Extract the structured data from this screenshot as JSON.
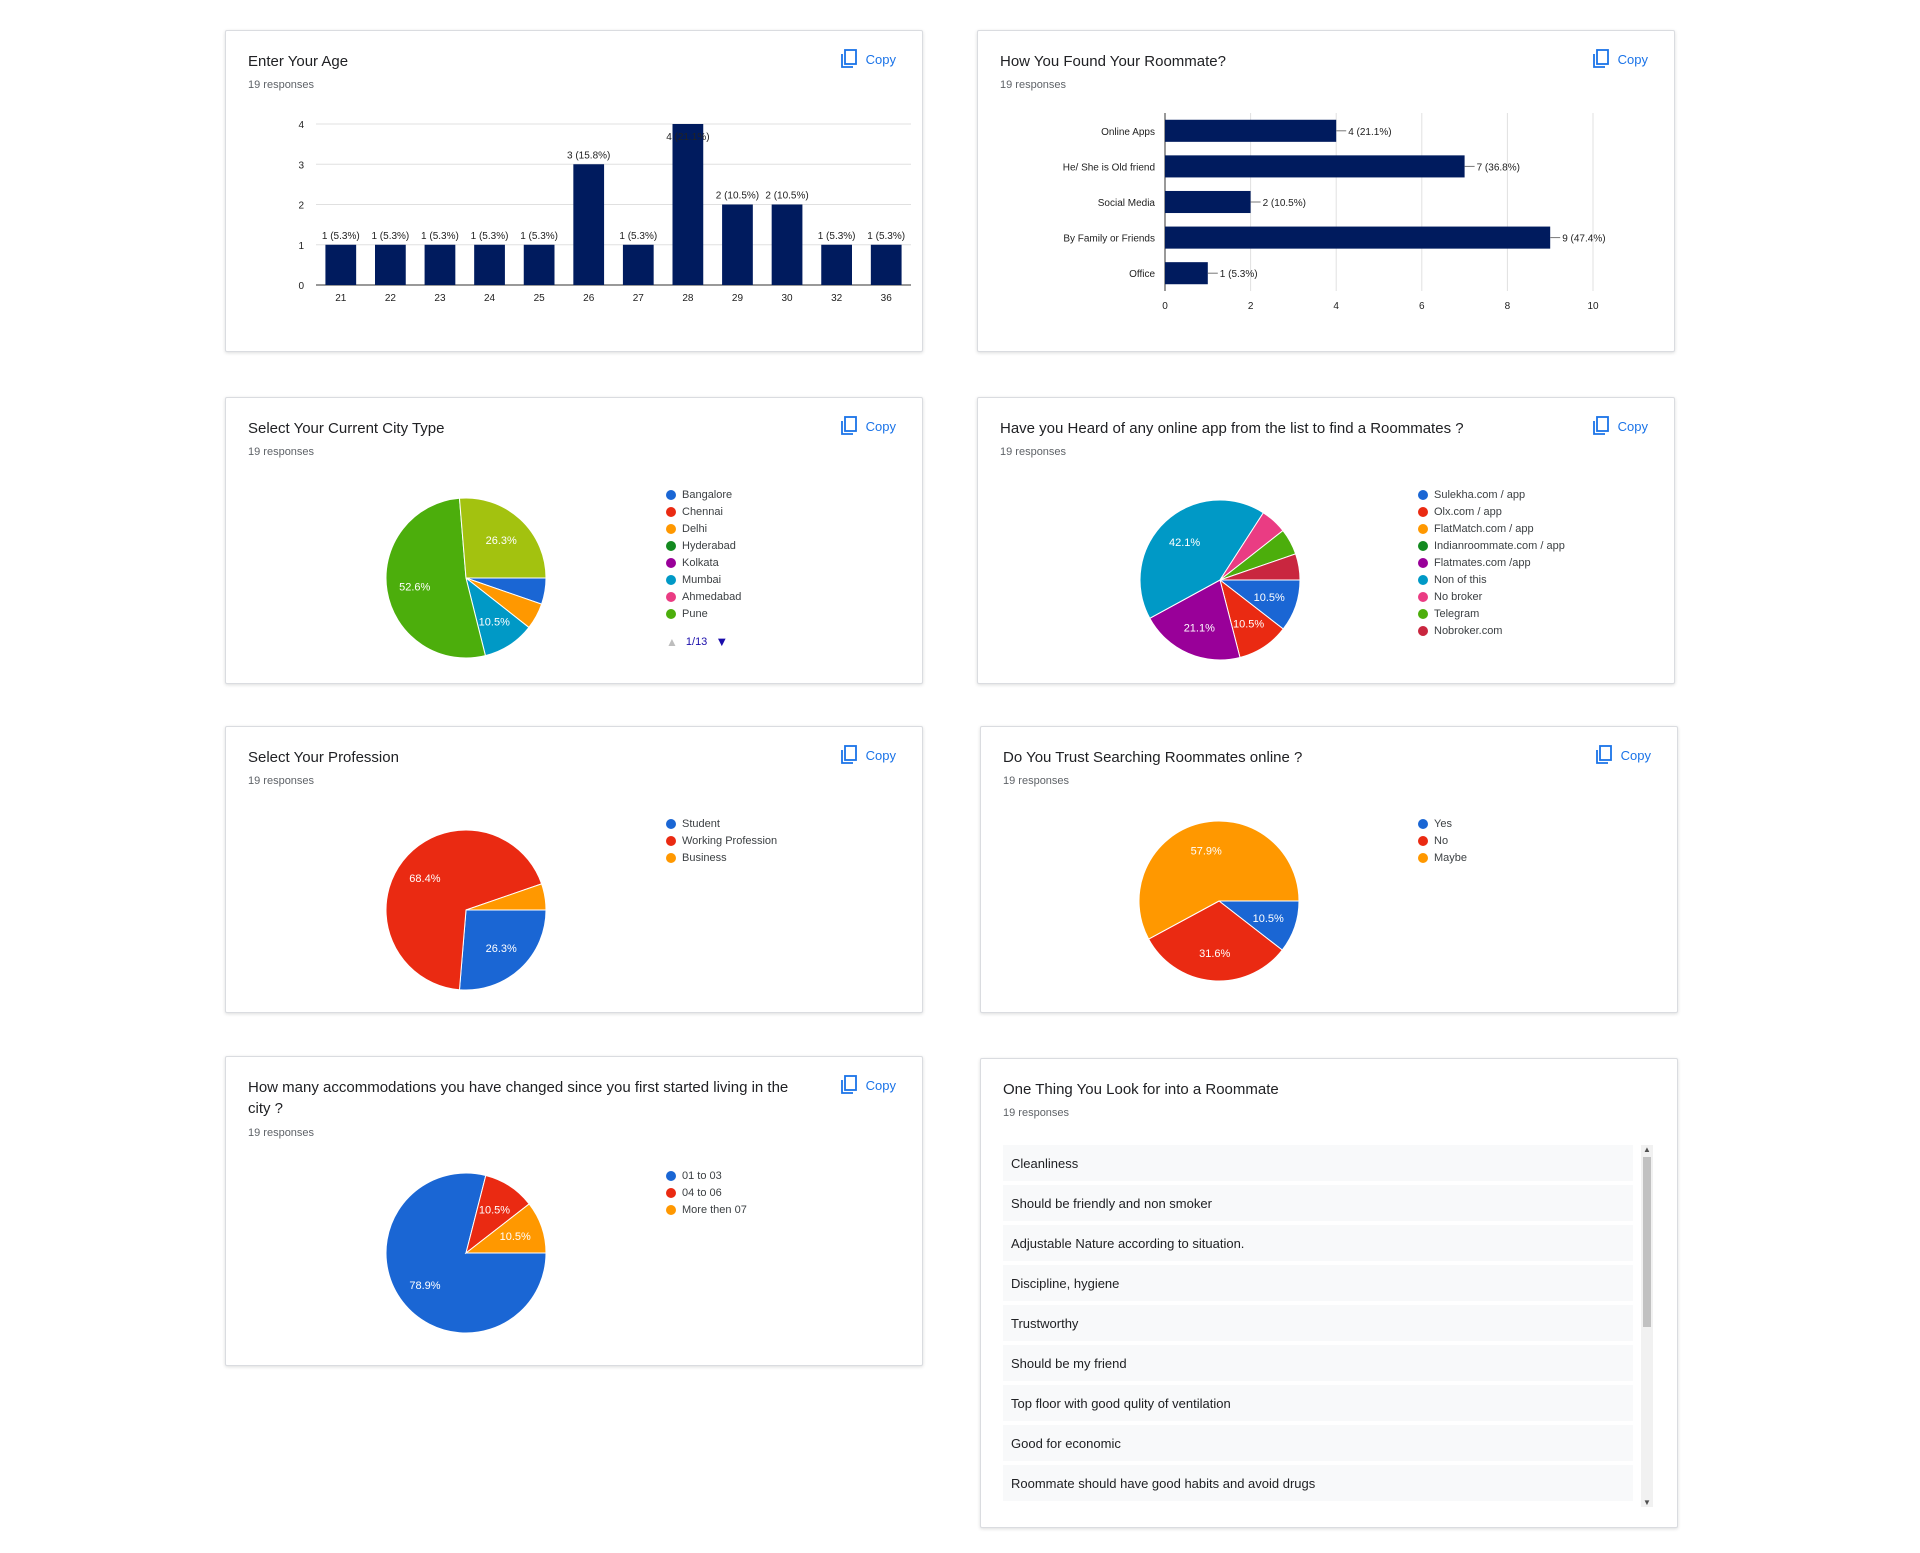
{
  "copy_label": "Copy",
  "cards": {
    "age": {
      "title": "Enter Your Age",
      "responses": "19 responses",
      "chart_data": {
        "type": "bar",
        "categories": [
          "21",
          "22",
          "23",
          "24",
          "25",
          "26",
          "27",
          "28",
          "29",
          "30",
          "32",
          "36"
        ],
        "values": [
          1,
          1,
          1,
          1,
          1,
          3,
          1,
          4,
          2,
          2,
          1,
          1
        ],
        "data_labels": [
          "1 (5.3%)",
          "1 (5.3%)",
          "1 (5.3%)",
          "1 (5.3%)",
          "1 (5.3%)",
          "3 (15.8%)",
          "1 (5.3%)",
          "4 (21.1%)",
          "2 (10.5%)",
          "2 (10.5%)",
          "1 (5.3%)",
          "1 (5.3%)"
        ],
        "ylim": [
          0,
          4
        ],
        "yticks": [
          "0",
          "1",
          "2",
          "3",
          "4"
        ],
        "color": "#001b5e",
        "grid": true
      }
    },
    "found": {
      "title": "How You Found Your Roommate?",
      "responses": "19 responses",
      "chart_data": {
        "type": "bar",
        "orientation": "horizontal",
        "categories": [
          "Online Apps",
          "He/ She is Old friend",
          "Social Media",
          "By Family or Friends",
          "Office"
        ],
        "values": [
          4,
          7,
          2,
          9,
          1
        ],
        "data_labels": [
          "4 (21.1%)",
          "7 (36.8%)",
          "2 (10.5%)",
          "9 (47.4%)",
          "1 (5.3%)"
        ],
        "xlim": [
          0,
          10
        ],
        "xticks": [
          "0",
          "2",
          "4",
          "6",
          "8",
          "10"
        ],
        "color": "#001b5e",
        "grid": true
      }
    },
    "city": {
      "title": "Select Your Current City Type",
      "responses": "19 responses",
      "pager": "1/13",
      "chart_data": {
        "type": "pie",
        "slices": [
          {
            "label": "Bangalore",
            "value": 5.3,
            "color": "#1a66d4",
            "text": ""
          },
          {
            "label": "Chennai",
            "value": 0,
            "color": "#ea2a12",
            "text": ""
          },
          {
            "label": "Delhi",
            "value": 5.3,
            "color": "#ff9800",
            "text": ""
          },
          {
            "label": "Hyderabad",
            "value": 0,
            "color": "#138a20",
            "text": ""
          },
          {
            "label": "Kolkata",
            "value": 0,
            "color": "#990099",
            "text": ""
          },
          {
            "label": "Mumbai",
            "value": 10.5,
            "color": "#0099c6",
            "text": "10.5%"
          },
          {
            "label": "Ahmedabad",
            "value": 0,
            "color": "#ea3c83",
            "text": ""
          },
          {
            "label": "Pune",
            "value": 52.6,
            "color": "#4cae0c",
            "text": "52.6%"
          },
          {
            "label": "",
            "value": 26.3,
            "color": "#a3c20f",
            "text": "26.3%"
          }
        ]
      }
    },
    "heard": {
      "title": "Have you Heard of any online app from the list to find a Roommates ?",
      "responses": "19 responses",
      "chart_data": {
        "type": "pie",
        "slices": [
          {
            "label": "Sulekha.com / app",
            "value": 10.5,
            "color": "#1a66d4",
            "text": "10.5%"
          },
          {
            "label": "Olx.com / app",
            "value": 10.5,
            "color": "#ea2a12",
            "text": "10.5%"
          },
          {
            "label": "FlatMatch.com / app",
            "value": 0,
            "color": "#ff9800",
            "text": ""
          },
          {
            "label": "Indianroommate.com / app",
            "value": 0,
            "color": "#138a20",
            "text": ""
          },
          {
            "label": "Flatmates.com /app",
            "value": 21.1,
            "color": "#990099",
            "text": "21.1%"
          },
          {
            "label": "Non of this",
            "value": 42.1,
            "color": "#0099c6",
            "text": "42.1%"
          },
          {
            "label": "No broker",
            "value": 5.3,
            "color": "#ea3c83",
            "text": ""
          },
          {
            "label": "Telegram",
            "value": 5.3,
            "color": "#4cae0c",
            "text": ""
          },
          {
            "label": "Nobroker.com",
            "value": 5.3,
            "color": "#c9263f",
            "text": ""
          }
        ]
      }
    },
    "profession": {
      "title": "Select Your Profession",
      "responses": "19 responses",
      "chart_data": {
        "type": "pie",
        "slices": [
          {
            "label": "Student",
            "value": 26.3,
            "color": "#1a66d4",
            "text": "26.3%"
          },
          {
            "label": "Working Profession",
            "value": 68.4,
            "color": "#ea2a12",
            "text": "68.4%"
          },
          {
            "label": "Business",
            "value": 5.3,
            "color": "#ff9800",
            "text": ""
          }
        ]
      }
    },
    "trust": {
      "title": "Do You Trust Searching Roommates online ?",
      "responses": "19 responses",
      "chart_data": {
        "type": "pie",
        "slices": [
          {
            "label": "Yes",
            "value": 10.5,
            "color": "#1a66d4",
            "text": "10.5%"
          },
          {
            "label": "No",
            "value": 31.6,
            "color": "#ea2a12",
            "text": "31.6%"
          },
          {
            "label": "Maybe",
            "value": 57.9,
            "color": "#ff9800",
            "text": "57.9%"
          }
        ]
      }
    },
    "accommodations": {
      "title": "How many accommodations you have changed since you first started living in the city ?",
      "responses": "19 responses",
      "chart_data": {
        "type": "pie",
        "slices": [
          {
            "label": "01 to 03",
            "value": 78.9,
            "color": "#1a66d4",
            "text": "78.9%"
          },
          {
            "label": "04 to 06",
            "value": 10.5,
            "color": "#ea2a12",
            "text": "10.5%"
          },
          {
            "label": "More then 07",
            "value": 10.5,
            "color": "#ff9800",
            "text": "10.5%"
          }
        ]
      }
    },
    "lookfor": {
      "title": "One Thing You Look for into a Roommate",
      "responses": "19 responses",
      "items": [
        "Cleanliness",
        "Should be friendly and non smoker",
        "Adjustable Nature according to situation.",
        "Discipline, hygiene",
        "Trustworthy",
        "Should be my friend",
        "Top floor with good qulity of ventilation",
        "Good for economic",
        "Roommate should have good habits and avoid drugs"
      ]
    }
  }
}
